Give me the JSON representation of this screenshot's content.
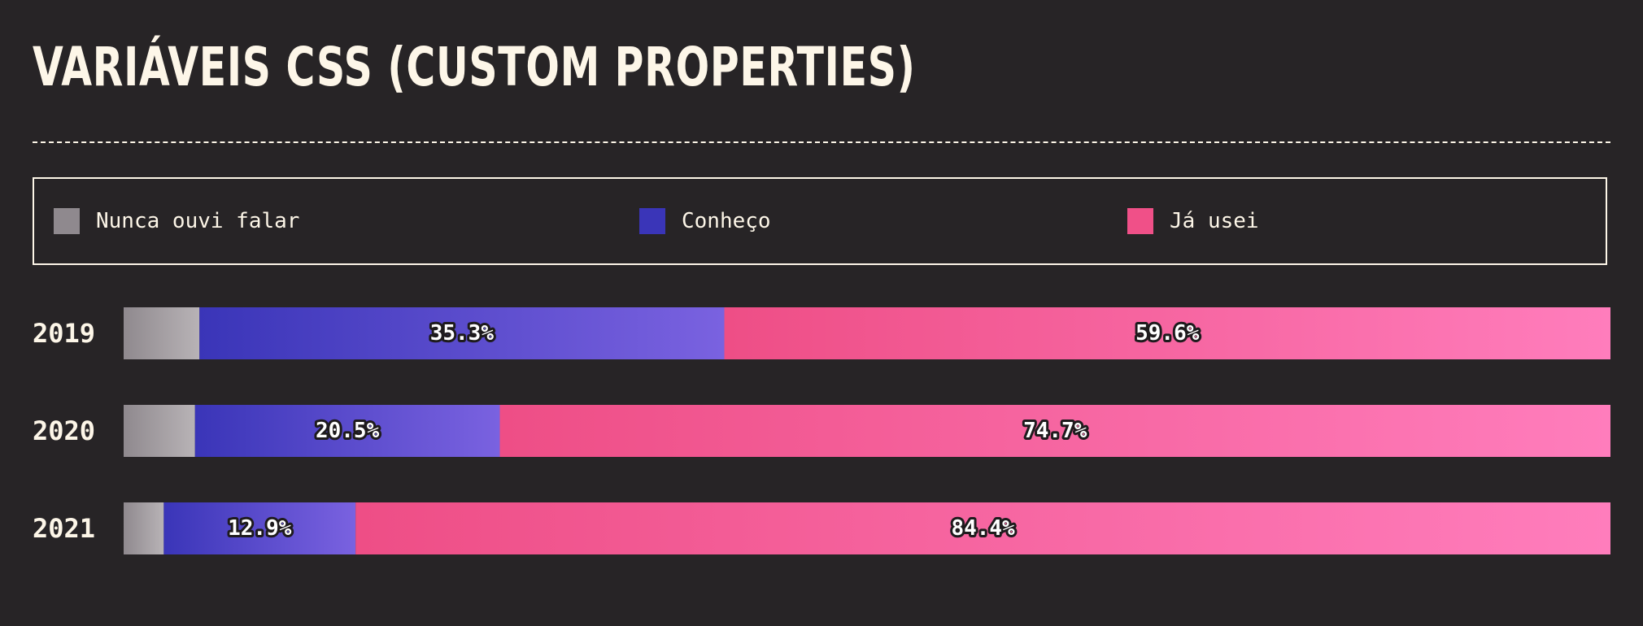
{
  "title": "VARIÁVEIS CSS (CUSTOM PROPERTIES)",
  "legend": [
    {
      "label": "Nunca ouvi falar",
      "color": "#8f898e"
    },
    {
      "label": "Conheço",
      "color": "#3a35b8"
    },
    {
      "label": "Já usei",
      "color": "#f05088"
    }
  ],
  "chart_data": {
    "type": "bar",
    "orientation": "horizontal",
    "stacked": true,
    "normalized": true,
    "categories": [
      "2019",
      "2020",
      "2021"
    ],
    "series": [
      {
        "name": "Nunca ouvi falar",
        "values": [
          5.1,
          4.8,
          2.7
        ],
        "labeled": false
      },
      {
        "name": "Conheço",
        "values": [
          35.3,
          20.5,
          12.9
        ],
        "labeled": true
      },
      {
        "name": "Já usei",
        "values": [
          59.6,
          74.7,
          84.4
        ],
        "labeled": true
      }
    ],
    "value_suffix": "%",
    "grid": false,
    "legend_position": "top"
  }
}
